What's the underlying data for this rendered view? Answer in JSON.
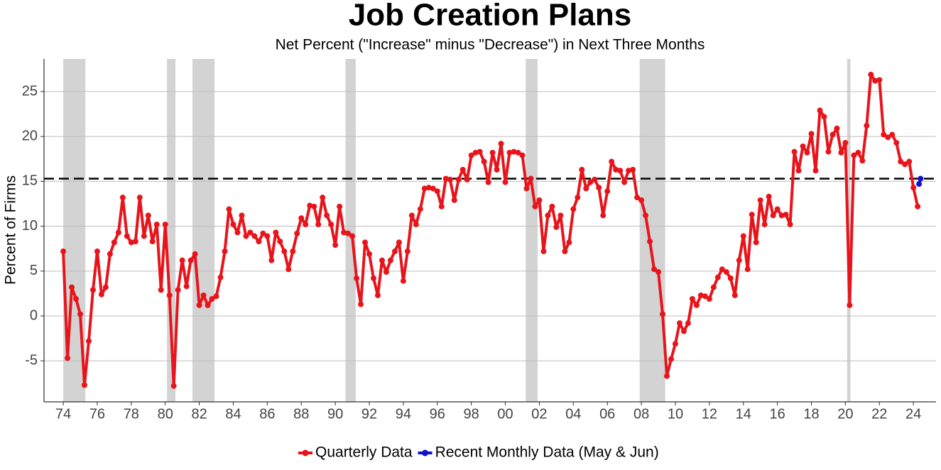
{
  "chart_data": {
    "type": "line",
    "title": "Job Creation Plans",
    "subtitle": "Net Percent (\"Increase\" minus \"Decrease\") in Next Three Months",
    "y_label": "Percent of Firms",
    "xlim": [
      1972.87,
      2025.33
    ],
    "ylim": [
      -9.57,
      28.64
    ],
    "yticks": [
      -5,
      0,
      5,
      10,
      15,
      20,
      25
    ],
    "xticks": [
      {
        "value": 1974,
        "label": "74"
      },
      {
        "value": 1976,
        "label": "76"
      },
      {
        "value": 1978,
        "label": "78"
      },
      {
        "value": 1980,
        "label": "80"
      },
      {
        "value": 1982,
        "label": "82"
      },
      {
        "value": 1984,
        "label": "84"
      },
      {
        "value": 1986,
        "label": "86"
      },
      {
        "value": 1988,
        "label": "88"
      },
      {
        "value": 1990,
        "label": "90"
      },
      {
        "value": 1992,
        "label": "92"
      },
      {
        "value": 1994,
        "label": "94"
      },
      {
        "value": 1996,
        "label": "96"
      },
      {
        "value": 1998,
        "label": "98"
      },
      {
        "value": 2000,
        "label": "00"
      },
      {
        "value": 2002,
        "label": "02"
      },
      {
        "value": 2004,
        "label": "04"
      },
      {
        "value": 2006,
        "label": "06"
      },
      {
        "value": 2008,
        "label": "08"
      },
      {
        "value": 2010,
        "label": "10"
      },
      {
        "value": 2012,
        "label": "12"
      },
      {
        "value": 2014,
        "label": "14"
      },
      {
        "value": 2016,
        "label": "16"
      },
      {
        "value": 2018,
        "label": "18"
      },
      {
        "value": 2020,
        "label": "20"
      },
      {
        "value": 2022,
        "label": "22"
      },
      {
        "value": 2024,
        "label": "24"
      }
    ],
    "grid": true,
    "reference_line": 15.3,
    "shaded_periods": [
      [
        1974.0,
        1975.3
      ],
      [
        1980.1,
        1980.6
      ],
      [
        1981.6,
        1982.9
      ],
      [
        1990.6,
        1991.2
      ],
      [
        2001.2,
        2001.9
      ],
      [
        2007.9,
        2009.4
      ],
      [
        2020.1,
        2020.3
      ]
    ],
    "legend": "bottom",
    "series": [
      {
        "name": "Quarterly Data",
        "color": "#e8141b",
        "x": [
          1974,
          1974.25,
          1974.5,
          1974.75,
          1975,
          1975.25,
          1975.5,
          1975.75,
          1976,
          1976.25,
          1976.5,
          1976.75,
          1977,
          1977.25,
          1977.5,
          1977.75,
          1978,
          1978.25,
          1978.5,
          1978.75,
          1979,
          1979.25,
          1979.5,
          1979.75,
          1980,
          1980.25,
          1980.5,
          1980.75,
          1981,
          1981.25,
          1981.5,
          1981.75,
          1982,
          1982.25,
          1982.5,
          1982.75,
          1983,
          1983.25,
          1983.5,
          1983.75,
          1984,
          1984.25,
          1984.5,
          1984.75,
          1985,
          1985.25,
          1985.5,
          1985.75,
          1986,
          1986.25,
          1986.5,
          1986.75,
          1987,
          1987.25,
          1987.5,
          1987.75,
          1988,
          1988.25,
          1988.5,
          1988.75,
          1989,
          1989.25,
          1989.5,
          1989.75,
          1990,
          1990.25,
          1990.5,
          1990.75,
          1991,
          1991.25,
          1991.5,
          1991.75,
          1992,
          1992.25,
          1992.5,
          1992.75,
          1993,
          1993.25,
          1993.5,
          1993.75,
          1994,
          1994.25,
          1994.5,
          1994.75,
          1995,
          1995.25,
          1995.5,
          1995.75,
          1996,
          1996.25,
          1996.5,
          1996.75,
          1997,
          1997.25,
          1997.5,
          1997.75,
          1998,
          1998.25,
          1998.5,
          1998.75,
          1999,
          1999.25,
          1999.5,
          1999.75,
          2000,
          2000.25,
          2000.5,
          2000.75,
          2001,
          2001.25,
          2001.5,
          2001.75,
          2002,
          2002.25,
          2002.5,
          2002.75,
          2003,
          2003.25,
          2003.5,
          2003.75,
          2004,
          2004.25,
          2004.5,
          2004.75,
          2005,
          2005.25,
          2005.5,
          2005.75,
          2006,
          2006.25,
          2006.5,
          2006.75,
          2007,
          2007.25,
          2007.5,
          2007.75,
          2008,
          2008.25,
          2008.5,
          2008.75,
          2009,
          2009.25,
          2009.5,
          2009.75,
          2010,
          2010.25,
          2010.5,
          2010.75,
          2011,
          2011.25,
          2011.5,
          2011.75,
          2012,
          2012.25,
          2012.5,
          2012.75,
          2013,
          2013.25,
          2013.5,
          2013.75,
          2014,
          2014.25,
          2014.5,
          2014.75,
          2015,
          2015.25,
          2015.5,
          2015.75,
          2016,
          2016.25,
          2016.5,
          2016.75,
          2017,
          2017.25,
          2017.5,
          2017.75,
          2018,
          2018.25,
          2018.5,
          2018.75,
          2019,
          2019.25,
          2019.5,
          2019.75,
          2020,
          2020.25,
          2020.5,
          2020.75,
          2021,
          2021.25,
          2021.5,
          2021.75,
          2022,
          2022.25,
          2022.5,
          2022.75,
          2023,
          2023.25,
          2023.5,
          2023.75,
          2024,
          2024.25
        ],
        "values": [
          7.2,
          -4.7,
          3.2,
          1.9,
          0.2,
          -7.7,
          -2.8,
          2.9,
          7.2,
          2.4,
          3.2,
          6.9,
          8.2,
          9.3,
          13.2,
          8.9,
          8.2,
          8.3,
          13.2,
          8.9,
          11.2,
          8.3,
          10.2,
          2.9,
          10.2,
          2.3,
          -7.8,
          2.9,
          6.2,
          3.3,
          6.2,
          6.9,
          1.2,
          2.3,
          1.2,
          1.9,
          2.2,
          4.3,
          7.2,
          11.9,
          10.2,
          9.3,
          11.2,
          8.9,
          9.3,
          8.9,
          8.3,
          9.2,
          8.9,
          6.2,
          9.3,
          8.3,
          7.2,
          5.2,
          7.2,
          9.2,
          10.9,
          10.2,
          12.3,
          12.2,
          10.2,
          13.2,
          11.2,
          10.2,
          7.9,
          12.2,
          9.3,
          9.2,
          8.9,
          4.2,
          1.3,
          8.2,
          6.9,
          4.2,
          2.3,
          6.2,
          4.9,
          6.2,
          7.2,
          8.2,
          3.9,
          7.2,
          11.2,
          10.2,
          11.9,
          14.2,
          14.3,
          14.2,
          13.9,
          12.2,
          15.3,
          15.2,
          12.9,
          15.2,
          16.3,
          15.2,
          17.9,
          18.2,
          18.3,
          17.2,
          14.9,
          18.2,
          16.3,
          19.2,
          14.9,
          18.2,
          18.3,
          18.2,
          17.9,
          14.2,
          15.3,
          12.2,
          12.9,
          7.2,
          11.2,
          12.2,
          9.9,
          11.2,
          7.2,
          8.2,
          11.9,
          13.2,
          16.3,
          14.2,
          14.9,
          15.2,
          14.3,
          11.2,
          13.9,
          17.2,
          16.3,
          16.2,
          14.9,
          16.2,
          16.3,
          13.2,
          12.9,
          11.2,
          8.3,
          5.2,
          4.9,
          0.2,
          -6.7,
          -4.8,
          -3.1,
          -0.8,
          -1.7,
          -0.8,
          1.9,
          1.2,
          2.3,
          2.2,
          1.9,
          3.2,
          4.3,
          5.2,
          4.9,
          4.2,
          2.3,
          6.2,
          8.9,
          5.2,
          11.3,
          8.2,
          12.9,
          10.2,
          13.3,
          11.2,
          11.9,
          11.2,
          11.3,
          10.2,
          18.3,
          16.2,
          18.9,
          18.2,
          20.3,
          16.2,
          22.9,
          22.2,
          18.3,
          20.2,
          20.9,
          18.2,
          19.3,
          1.2,
          17.9,
          18.2,
          17.3,
          21.2,
          26.9,
          26.2,
          26.3,
          20.2,
          19.9,
          20.2,
          19.3,
          17.2,
          16.9,
          17.2,
          14.3,
          12.2
        ]
      },
      {
        "name": "Recent Monthly Data (May & Jun)",
        "color": "#1010d0",
        "x": [
          2024.33,
          2024.42
        ],
        "values": [
          14.7,
          15.3
        ]
      }
    ]
  }
}
